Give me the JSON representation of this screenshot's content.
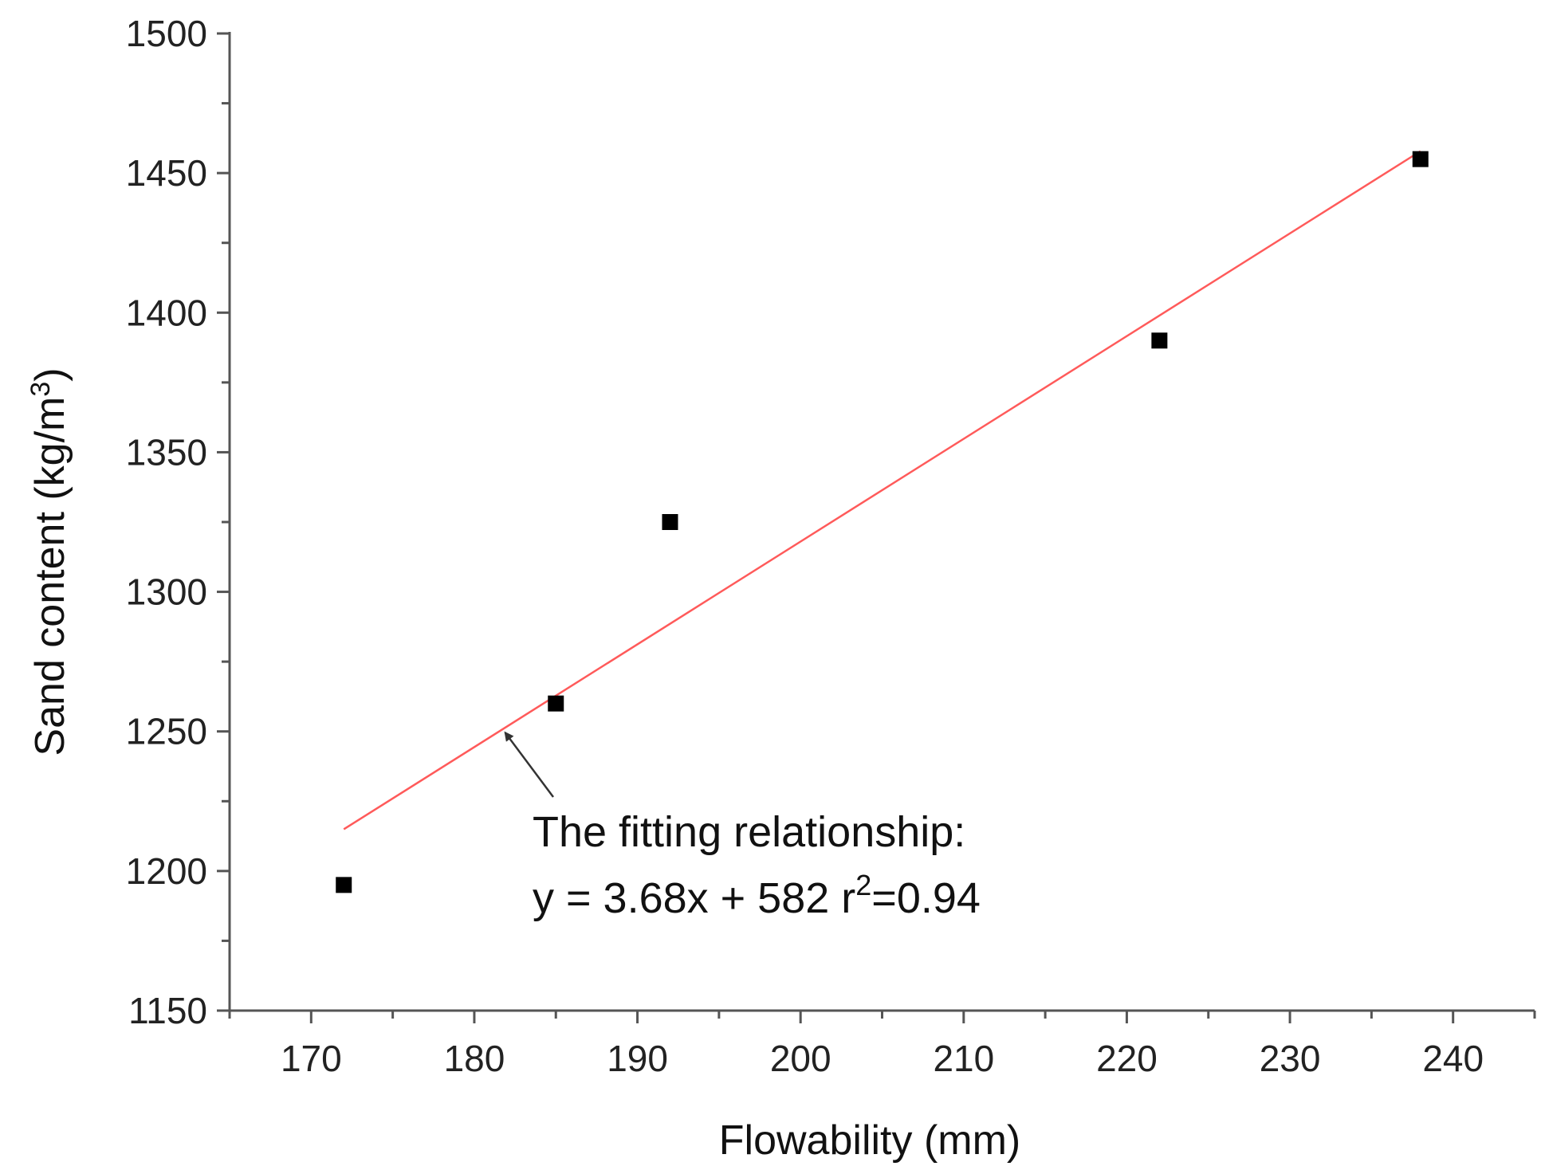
{
  "chart_data": {
    "type": "scatter",
    "title": "",
    "xlabel": "Flowability (mm)",
    "ylabel": {
      "main": "Sand content (kg/m",
      "superscript": "3",
      "close": ")"
    },
    "xlim": [
      165,
      245
    ],
    "ylim": [
      1150,
      1500
    ],
    "xticks": [
      170,
      180,
      190,
      200,
      210,
      220,
      230,
      240
    ],
    "yticks": [
      1150,
      1200,
      1250,
      1300,
      1350,
      1400,
      1450,
      1500
    ],
    "x_minor_step": 5,
    "y_minor_step": 25,
    "grid": false,
    "series": [
      {
        "marker": "square",
        "color": "#000000",
        "points": [
          {
            "x": 172,
            "y": 1195
          },
          {
            "x": 185,
            "y": 1260
          },
          {
            "x": 192,
            "y": 1325
          },
          {
            "x": 222,
            "y": 1390
          },
          {
            "x": 238,
            "y": 1455
          }
        ]
      }
    ],
    "fit_line": {
      "color": "#ff5a5a",
      "slope": 3.68,
      "intercept": 582,
      "x_start": 172,
      "x_end": 238
    },
    "annotation": {
      "line1": "The fitting relationship:",
      "line2_prefix": "y = 3.68x + 582   r",
      "line2_sup": "2",
      "line2_suffix": "=0.94",
      "arrow_target": {
        "x": 181.7,
        "y": 1251
      }
    }
  }
}
